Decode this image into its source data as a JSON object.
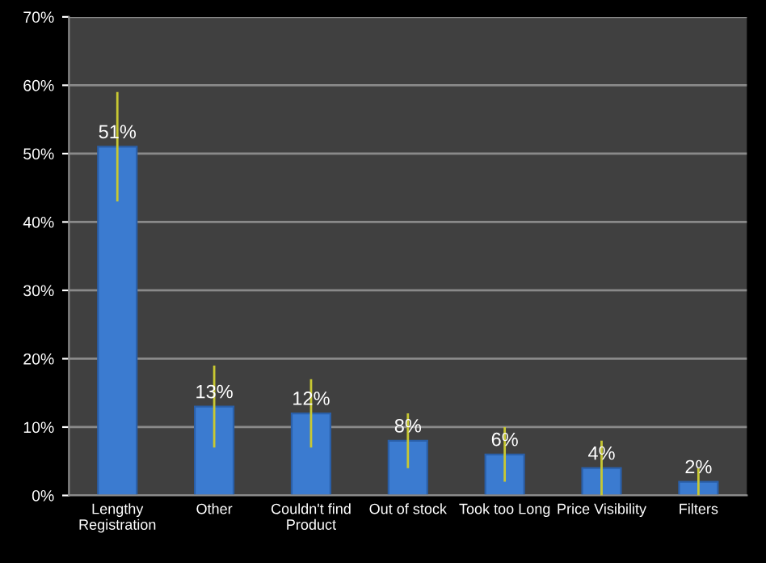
{
  "chart_data": {
    "type": "bar",
    "categories": [
      "Lengthy\nRegistration",
      "Other",
      "Couldn't find\nProduct",
      "Out of stock",
      "Took too Long",
      "Price Visibility",
      "Filters"
    ],
    "values": [
      51,
      13,
      12,
      8,
      6,
      4,
      2
    ],
    "errors": [
      8,
      6,
      5,
      4,
      4,
      4,
      2
    ],
    "value_labels": [
      "51%",
      "13%",
      "12%",
      "8%",
      "6%",
      "4%",
      "2%"
    ],
    "color": "#3b7bd0",
    "ylim": [
      0,
      70
    ],
    "yticks": [
      {
        "value": 0,
        "label": "0%"
      },
      {
        "value": 10,
        "label": "10%"
      },
      {
        "value": 20,
        "label": "20%"
      },
      {
        "value": 30,
        "label": "30%"
      },
      {
        "value": 40,
        "label": "40%"
      },
      {
        "value": 50,
        "label": "50%"
      },
      {
        "value": 60,
        "label": "60%"
      },
      {
        "value": 70,
        "label": "70%"
      }
    ],
    "grid": "y",
    "legend": false
  }
}
